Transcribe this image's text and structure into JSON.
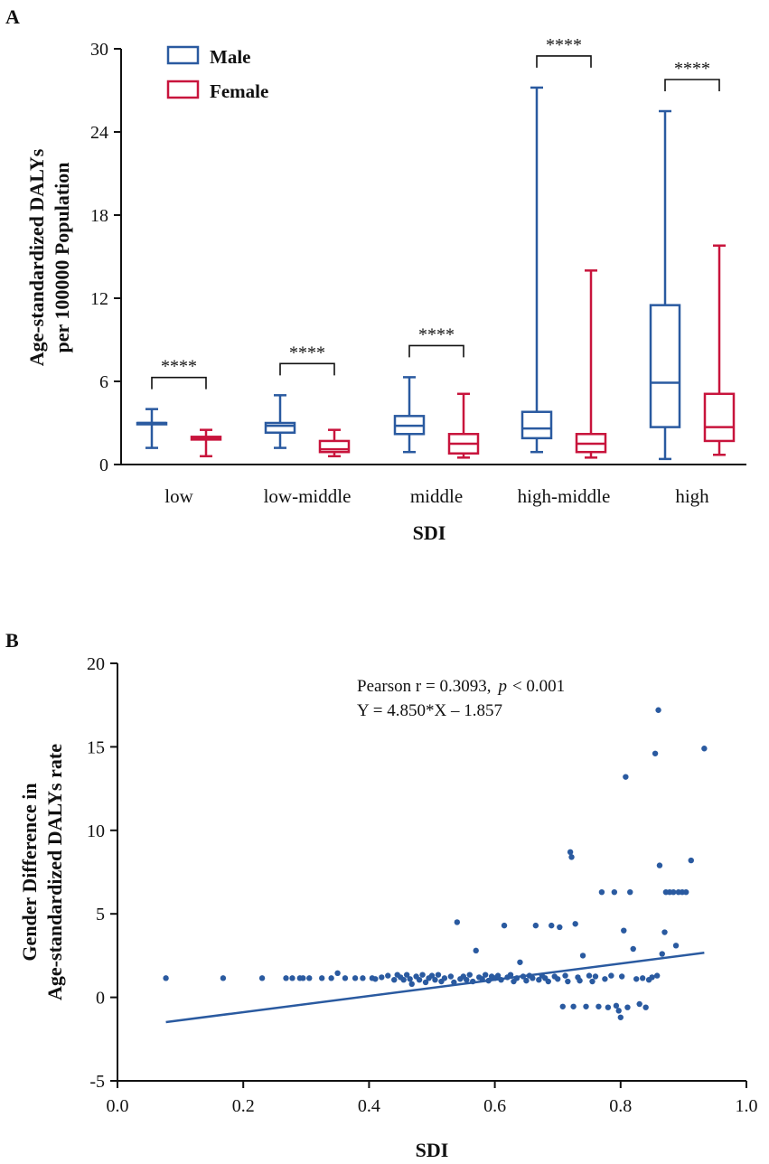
{
  "colors": {
    "male": "#2a5aa0",
    "female": "#c8143c",
    "axis": "#111111"
  },
  "panel_a": {
    "letter": "A",
    "chart_data": {
      "type": "boxplot",
      "xlabel": "SDI",
      "ylabel_lines": [
        "Age-standardized DALYs",
        "per 100000 Population"
      ],
      "yticks": [
        "0",
        "6",
        "12",
        "18",
        "24",
        "30"
      ],
      "ylim": [
        0,
        30
      ],
      "categories": [
        "low",
        "low-middle",
        "middle",
        "high-middle",
        "high"
      ],
      "legend": {
        "male": "Male",
        "female": "Female",
        "position": "top-left"
      },
      "significance": [
        "****",
        "****",
        "****",
        "****",
        "****"
      ],
      "series": [
        {
          "name": "Male",
          "boxes": [
            {
              "min": 1.2,
              "q1": 2.9,
              "median": 3.0,
              "q3": 3.0,
              "max": 4.0
            },
            {
              "min": 1.2,
              "q1": 2.3,
              "median": 2.8,
              "q3": 3.0,
              "max": 5.0
            },
            {
              "min": 0.9,
              "q1": 2.2,
              "median": 2.8,
              "q3": 3.5,
              "max": 6.3
            },
            {
              "min": 0.9,
              "q1": 1.9,
              "median": 2.6,
              "q3": 3.8,
              "max": 27.2
            },
            {
              "min": 0.4,
              "q1": 2.7,
              "median": 5.9,
              "q3": 11.5,
              "max": 25.5
            }
          ]
        },
        {
          "name": "Female",
          "boxes": [
            {
              "min": 0.6,
              "q1": 1.8,
              "median": 1.9,
              "q3": 2.0,
              "max": 2.5
            },
            {
              "min": 0.6,
              "q1": 0.9,
              "median": 1.1,
              "q3": 1.7,
              "max": 2.5
            },
            {
              "min": 0.5,
              "q1": 0.8,
              "median": 1.5,
              "q3": 2.2,
              "max": 5.1
            },
            {
              "min": 0.5,
              "q1": 0.9,
              "median": 1.5,
              "q3": 2.2,
              "max": 14.0
            },
            {
              "min": 0.7,
              "q1": 1.7,
              "median": 2.7,
              "q3": 5.1,
              "max": 15.8
            }
          ]
        }
      ]
    }
  },
  "panel_b": {
    "letter": "B",
    "chart_data": {
      "type": "scatter",
      "xlabel": "SDI",
      "ylabel_lines": [
        "Gender Difference in",
        "Age-standardized DALYs rate"
      ],
      "xticks": [
        "0.0",
        "0.2",
        "0.4",
        "0.6",
        "0.8",
        "1.0"
      ],
      "yticks": [
        "-5",
        "0",
        "5",
        "10",
        "15",
        "20"
      ],
      "xlim": [
        0,
        1
      ],
      "ylim": [
        -5,
        20
      ],
      "annotation": {
        "pearson_prefix": "Pearson r = 0.3093,",
        "p_symbol": "p",
        "p_suffix": "< 0.001",
        "equation": "Y = 4.850*X – 1.857"
      },
      "fit": {
        "slope": 4.85,
        "intercept": -1.857,
        "x_range": [
          0.077,
          0.933
        ]
      },
      "points": [
        [
          0.077,
          1.15
        ],
        [
          0.168,
          1.15
        ],
        [
          0.23,
          1.15
        ],
        [
          0.268,
          1.15
        ],
        [
          0.278,
          1.15
        ],
        [
          0.29,
          1.15
        ],
        [
          0.295,
          1.15
        ],
        [
          0.305,
          1.15
        ],
        [
          0.325,
          1.15
        ],
        [
          0.34,
          1.15
        ],
        [
          0.35,
          1.45
        ],
        [
          0.362,
          1.15
        ],
        [
          0.378,
          1.15
        ],
        [
          0.39,
          1.15
        ],
        [
          0.405,
          1.15
        ],
        [
          0.41,
          1.1
        ],
        [
          0.42,
          1.2
        ],
        [
          0.43,
          1.3
        ],
        [
          0.44,
          1.05
        ],
        [
          0.445,
          1.35
        ],
        [
          0.45,
          1.2
        ],
        [
          0.455,
          1.05
        ],
        [
          0.46,
          1.35
        ],
        [
          0.465,
          1.1
        ],
        [
          0.468,
          0.8
        ],
        [
          0.475,
          1.25
        ],
        [
          0.48,
          1.05
        ],
        [
          0.485,
          1.35
        ],
        [
          0.49,
          0.9
        ],
        [
          0.495,
          1.15
        ],
        [
          0.5,
          1.3
        ],
        [
          0.505,
          1.05
        ],
        [
          0.51,
          1.35
        ],
        [
          0.515,
          0.95
        ],
        [
          0.52,
          1.15
        ],
        [
          0.53,
          1.25
        ],
        [
          0.535,
          0.9
        ],
        [
          0.54,
          4.5
        ],
        [
          0.545,
          1.1
        ],
        [
          0.55,
          1.25
        ],
        [
          0.555,
          1.05
        ],
        [
          0.56,
          1.35
        ],
        [
          0.565,
          0.95
        ],
        [
          0.57,
          2.8
        ],
        [
          0.575,
          1.2
        ],
        [
          0.58,
          1.1
        ],
        [
          0.585,
          1.35
        ],
        [
          0.59,
          1.0
        ],
        [
          0.595,
          1.25
        ],
        [
          0.6,
          1.15
        ],
        [
          0.605,
          1.3
        ],
        [
          0.61,
          1.05
        ],
        [
          0.615,
          4.3
        ],
        [
          0.62,
          1.2
        ],
        [
          0.625,
          1.35
        ],
        [
          0.63,
          0.95
        ],
        [
          0.635,
          1.15
        ],
        [
          0.64,
          2.1
        ],
        [
          0.645,
          1.25
        ],
        [
          0.65,
          1.0
        ],
        [
          0.655,
          1.3
        ],
        [
          0.66,
          1.15
        ],
        [
          0.665,
          4.3
        ],
        [
          0.67,
          1.05
        ],
        [
          0.675,
          1.3
        ],
        [
          0.68,
          1.15
        ],
        [
          0.685,
          0.95
        ],
        [
          0.69,
          4.3
        ],
        [
          0.695,
          1.25
        ],
        [
          0.7,
          1.1
        ],
        [
          0.703,
          4.2
        ],
        [
          0.708,
          -0.55
        ],
        [
          0.712,
          1.3
        ],
        [
          0.716,
          0.95
        ],
        [
          0.72,
          8.7
        ],
        [
          0.722,
          8.4
        ],
        [
          0.725,
          -0.55
        ],
        [
          0.728,
          4.4
        ],
        [
          0.732,
          1.2
        ],
        [
          0.735,
          1.0
        ],
        [
          0.74,
          2.5
        ],
        [
          0.745,
          -0.55
        ],
        [
          0.75,
          1.3
        ],
        [
          0.755,
          0.95
        ],
        [
          0.76,
          1.25
        ],
        [
          0.765,
          -0.55
        ],
        [
          0.77,
          6.3
        ],
        [
          0.775,
          1.1
        ],
        [
          0.78,
          -0.6
        ],
        [
          0.785,
          1.3
        ],
        [
          0.79,
          6.3
        ],
        [
          0.793,
          -0.5
        ],
        [
          0.797,
          -0.8
        ],
        [
          0.8,
          -1.2
        ],
        [
          0.802,
          1.25
        ],
        [
          0.805,
          4.0
        ],
        [
          0.808,
          13.2
        ],
        [
          0.811,
          -0.6
        ],
        [
          0.815,
          6.3
        ],
        [
          0.82,
          2.9
        ],
        [
          0.825,
          1.1
        ],
        [
          0.83,
          -0.4
        ],
        [
          0.835,
          1.15
        ],
        [
          0.84,
          -0.6
        ],
        [
          0.845,
          1.05
        ],
        [
          0.85,
          1.2
        ],
        [
          0.855,
          14.6
        ],
        [
          0.858,
          1.3
        ],
        [
          0.86,
          17.2
        ],
        [
          0.862,
          7.9
        ],
        [
          0.866,
          2.6
        ],
        [
          0.87,
          3.9
        ],
        [
          0.872,
          6.3
        ],
        [
          0.878,
          6.3
        ],
        [
          0.884,
          6.3
        ],
        [
          0.888,
          3.1
        ],
        [
          0.892,
          6.3
        ],
        [
          0.898,
          6.3
        ],
        [
          0.904,
          6.3
        ],
        [
          0.912,
          8.2
        ],
        [
          0.933,
          14.9
        ]
      ]
    }
  }
}
